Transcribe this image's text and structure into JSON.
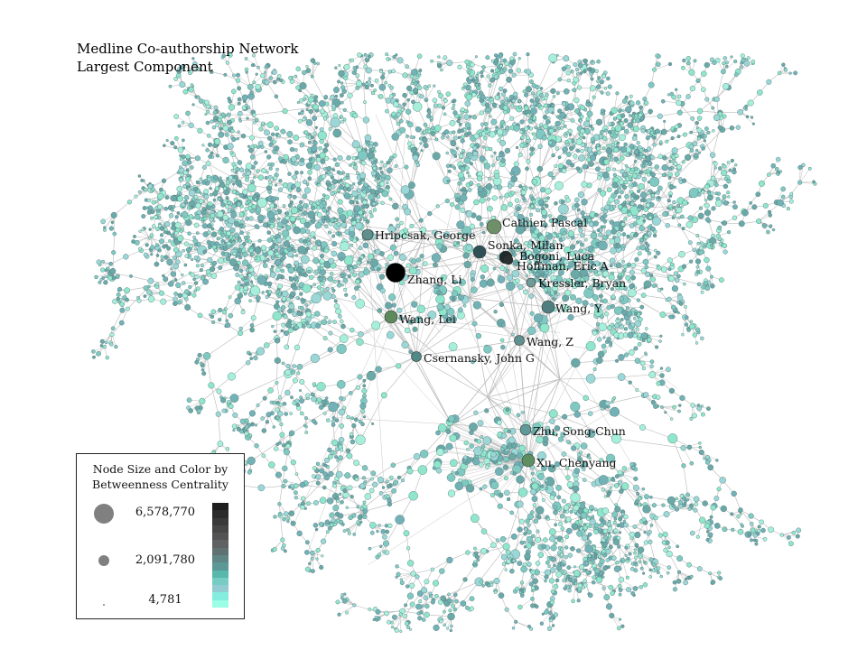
{
  "title": {
    "line1": "Medline Co-authorship Network",
    "line2": "Largest Component"
  },
  "nodes": [
    {
      "name": "Hripcsak, George",
      "color": "#5e8f8c"
    },
    {
      "name": "Cathier, Pascal",
      "color": "#6f8f68"
    },
    {
      "name": "Sonka, Milan",
      "color": "#2f4f56"
    },
    {
      "name": "Bogoni, Luca",
      "color": "#1f2a2a"
    },
    {
      "name": "Hoffman, Eric A",
      "color": "#2a2f30"
    },
    {
      "name": "Zhang, Li",
      "color": "#000000"
    },
    {
      "name": "Kressler, Bryan",
      "color": "#6e9a98"
    },
    {
      "name": "Wang, Y",
      "color": "#4f7f7e"
    },
    {
      "name": "Wang, Lei",
      "color": "#5d8a5d"
    },
    {
      "name": "Wang, Z",
      "color": "#5f9190"
    },
    {
      "name": "Csernansky, John G",
      "color": "#4f8a88"
    },
    {
      "name": "Zhu, Song-Chun",
      "color": "#5f9a98"
    },
    {
      "name": "Xu, Chenyang",
      "color": "#5f8f60"
    }
  ],
  "legend": {
    "title_line1": "Node Size and Color by",
    "title_line2": "Betweenness Centrality",
    "entries": [
      "6,578,770",
      "2,091,780",
      "4,781"
    ],
    "scale_colors": [
      "#1e1e1e",
      "#2c2c2c",
      "#3a3a3a",
      "#474747",
      "#535353",
      "#5e6262",
      "#5f7170",
      "#5f8584",
      "#5c9996",
      "#57b8ab",
      "#77cdc5",
      "#93cdd3",
      "#84ede0",
      "#9affe4"
    ]
  },
  "colors": {
    "edge": "#b9b9b9",
    "node_light": "#8fe6cc",
    "node_mid": "#72b2b6",
    "node_stroke": "#4a6e6e"
  }
}
